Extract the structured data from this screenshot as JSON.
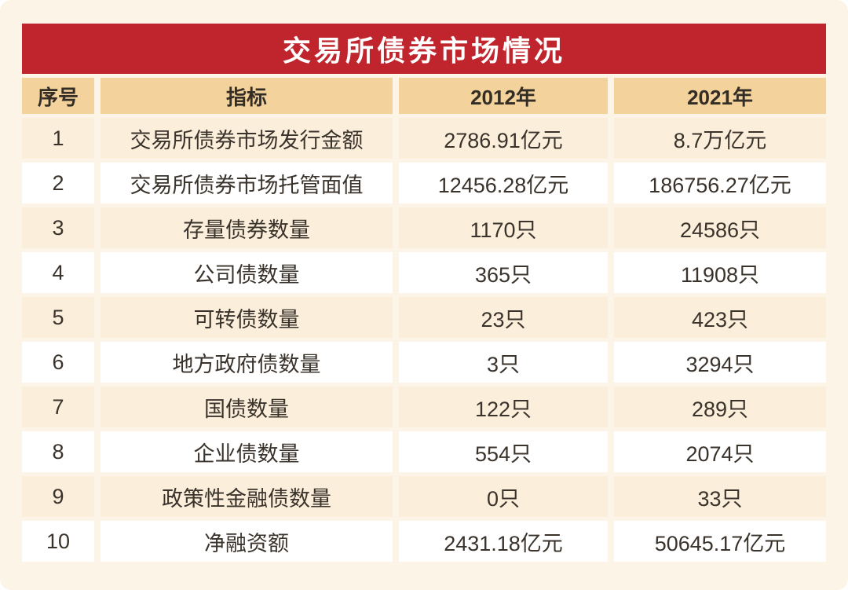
{
  "title_banner": {
    "text": "交易所债券市场情况"
  },
  "colors": {
    "banner_red": "#c0242c",
    "banner_text": "#ffffff",
    "header_row_bg": "#f3d29b",
    "odd_row_bg": "#fbeeda",
    "even_row_bg": "#ffffff",
    "page_bg": "#fdf4e8",
    "text": "#3a332c"
  },
  "chart_data": {
    "type": "table",
    "title": "交易所债券市场情况",
    "columns": [
      "序号",
      "指标",
      "2012年",
      "2021年"
    ],
    "rows": [
      [
        "1",
        "交易所债券市场发行金额",
        "2786.91亿元",
        "8.7万亿元"
      ],
      [
        "2",
        "交易所债券市场托管面值",
        "12456.28亿元",
        "186756.27亿元"
      ],
      [
        "3",
        "存量债券数量",
        "1170只",
        "24586只"
      ],
      [
        "4",
        "公司债数量",
        "365只",
        "11908只"
      ],
      [
        "5",
        "可转债数量",
        "23只",
        "423只"
      ],
      [
        "6",
        "地方政府债数量",
        "3只",
        "3294只"
      ],
      [
        "7",
        "国债数量",
        "122只",
        "289只"
      ],
      [
        "8",
        "企业债数量",
        "554只",
        "2074只"
      ],
      [
        "9",
        "政策性金融债数量",
        "0只",
        "33只"
      ],
      [
        "10",
        "净融资额",
        "2431.18亿元",
        "50645.17亿元"
      ]
    ]
  }
}
